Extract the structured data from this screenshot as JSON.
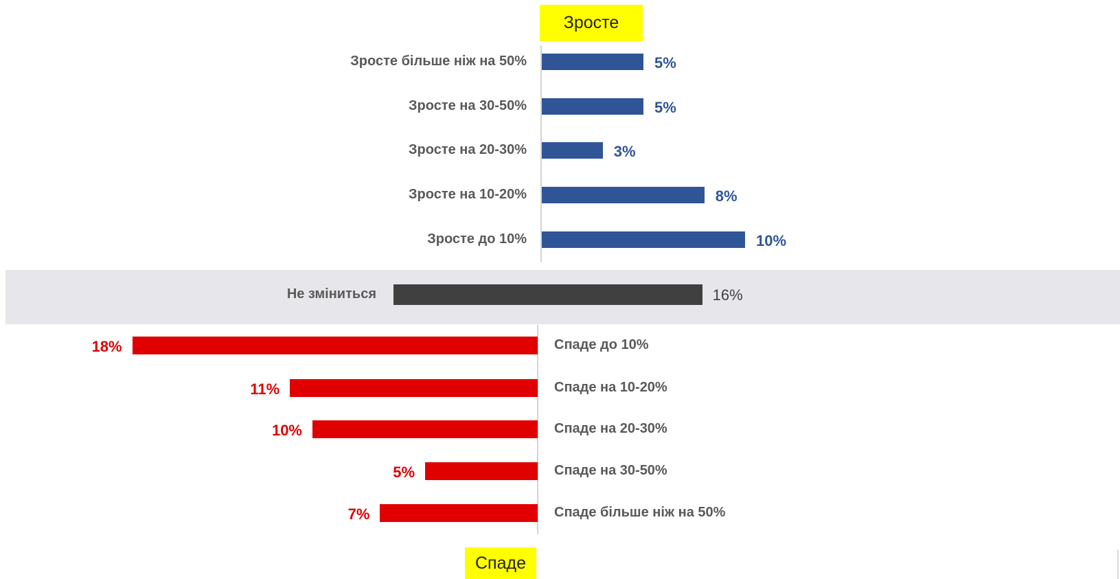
{
  "header": {
    "increase_label": "Зросте",
    "decrease_label": "Спаде"
  },
  "colors": {
    "increase": "#2f5597",
    "neutral": "#404040",
    "decrease": "#e00000",
    "badge": "#ffff00",
    "neutral_band": "#e7e6eb"
  },
  "chart_data": {
    "type": "bar",
    "orientation": "horizontal",
    "title": "",
    "xlabel": "",
    "ylabel": "",
    "xlim": [
      0,
      20
    ],
    "grid": false,
    "legend": "none",
    "increase": {
      "categories": [
        "Зросте більше ніж на 50%",
        "Зросте на 30-50%",
        "Зросте на 20-30%",
        "Зросте на 10-20%",
        "Зросте до 10%"
      ],
      "values": [
        5,
        5,
        3,
        8,
        10
      ],
      "labels": [
        "5%",
        "5%",
        "3%",
        "8%",
        "10%"
      ]
    },
    "neutral": {
      "category": "Не зміниться",
      "value": 16,
      "label": "16%"
    },
    "decrease": {
      "categories": [
        "Спаде до 10%",
        "Спаде на 10-20%",
        "Спаде на 20-30%",
        "Спаде на 30-50%",
        "Спаде більше ніж на 50%"
      ],
      "values": [
        18,
        11,
        10,
        5,
        7
      ],
      "labels": [
        "18%",
        "11%",
        "10%",
        "5%",
        "7%"
      ]
    }
  }
}
